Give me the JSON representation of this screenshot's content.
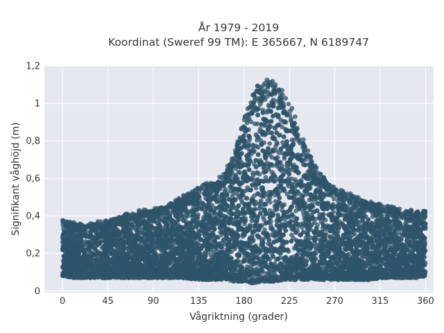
{
  "chart_data": {
    "type": "scatter",
    "title_line1": "År 1979 - 2019",
    "title_line2": "Koordinat (Sweref 99 TM): E 365667, N 6189747",
    "xlabel": "Vågriktning (grader)",
    "ylabel": "Signifikant våghöjd (m)",
    "xlim": [
      -18,
      368
    ],
    "ylim": [
      -0.01,
      1.2
    ],
    "x_ticks": [
      0,
      45,
      90,
      135,
      180,
      225,
      270,
      315,
      360
    ],
    "x_tick_labels": [
      "0",
      "45",
      "90",
      "135",
      "180",
      "225",
      "270",
      "315",
      "360"
    ],
    "y_ticks": [
      0,
      0.2,
      0.4,
      0.6,
      0.8,
      1,
      1.2
    ],
    "y_tick_labels": [
      "0",
      "0,2",
      "0,4",
      "0,6",
      "0,8",
      "1",
      "1,2"
    ],
    "grid": true,
    "marker_color": "#2f5469",
    "background_color": "#e6e8f0",
    "envelope": {
      "direction": [
        0,
        10,
        20,
        30,
        45,
        60,
        75,
        90,
        105,
        120,
        135,
        150,
        160,
        170,
        180,
        190,
        200,
        210,
        220,
        225,
        235,
        245,
        255,
        265,
        275,
        290,
        305,
        320,
        335,
        350,
        360
      ],
      "min_height": [
        0.08,
        0.07,
        0.07,
        0.07,
        0.07,
        0.07,
        0.07,
        0.07,
        0.07,
        0.07,
        0.06,
        0.06,
        0.06,
        0.05,
        0.05,
        0.04,
        0.05,
        0.05,
        0.06,
        0.06,
        0.06,
        0.06,
        0.06,
        0.06,
        0.06,
        0.06,
        0.06,
        0.07,
        0.07,
        0.07,
        0.08
      ],
      "max_height": [
        0.38,
        0.36,
        0.35,
        0.36,
        0.37,
        0.4,
        0.42,
        0.43,
        0.46,
        0.5,
        0.55,
        0.58,
        0.62,
        0.72,
        0.9,
        1.05,
        1.12,
        1.1,
        1.05,
        1.0,
        0.85,
        0.72,
        0.62,
        0.57,
        0.53,
        0.5,
        0.47,
        0.45,
        0.43,
        0.42,
        0.43
      ]
    }
  }
}
